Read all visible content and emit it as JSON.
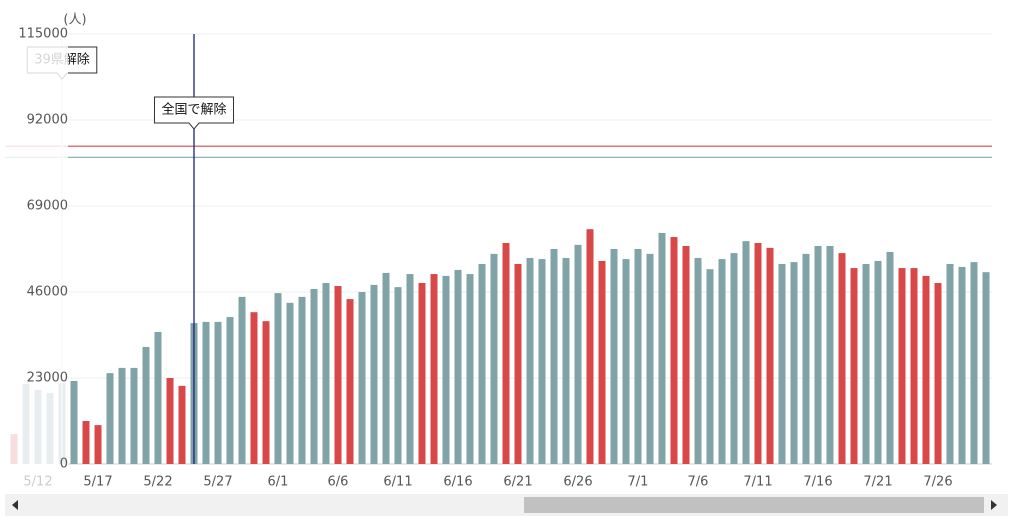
{
  "chart_data": {
    "type": "bar",
    "y_unit": "(人)",
    "categories": [
      null,
      null,
      "5/12",
      null,
      null,
      null,
      null,
      "5/17",
      null,
      null,
      null,
      null,
      "5/22",
      null,
      null,
      null,
      null,
      "5/27",
      null,
      null,
      null,
      null,
      "6/1",
      null,
      null,
      null,
      null,
      "6/6",
      null,
      null,
      null,
      null,
      "6/11",
      null,
      null,
      null,
      null,
      "6/16",
      null,
      null,
      null,
      null,
      "6/21",
      null,
      null,
      null,
      null,
      "6/26",
      null,
      null,
      null,
      null,
      "7/1",
      null,
      null,
      null,
      null,
      "7/6",
      null,
      null,
      null,
      null,
      "7/11",
      null,
      null,
      null,
      null,
      "7/16",
      null,
      null,
      null,
      null,
      "7/21",
      null,
      null,
      null,
      null,
      "7/26",
      null,
      null,
      null,
      null
    ],
    "values": [
      8000,
      21400,
      19800,
      19000,
      21700,
      22200,
      11500,
      10400,
      24300,
      25700,
      25700,
      31300,
      35300,
      23000,
      20900,
      37700,
      38000,
      38000,
      39300,
      44700,
      40600,
      38200,
      45700,
      43100,
      44700,
      46800,
      48400,
      47600,
      44100,
      46000,
      47900,
      51100,
      47300,
      50800,
      48400,
      50800,
      50300,
      51900,
      50800,
      53500,
      56200,
      59100,
      53500,
      55100,
      54800,
      57500,
      55100,
      58600,
      62800,
      54300,
      57500,
      54800,
      57500,
      56200,
      61800,
      60700,
      58300,
      55100,
      52100,
      54800,
      56400,
      59600,
      59100,
      57800,
      53500,
      54000,
      56200,
      58300,
      58300,
      56400,
      52400,
      53500,
      54300,
      56700,
      52400,
      52400,
      50300,
      48400,
      53500,
      52700,
      54000,
      51300
    ],
    "colors": [
      "#d94848",
      "#7fa3a6",
      "#7fa3a6",
      "#7fa3a6",
      "#7fa3a6",
      "#7fa3a6",
      "#d94848",
      "#d94848",
      "#7fa3a6",
      "#7fa3a6",
      "#7fa3a6",
      "#7fa3a6",
      "#7fa3a6",
      "#d94848",
      "#d94848",
      "#7fa3a6",
      "#7fa3a6",
      "#7fa3a6",
      "#7fa3a6",
      "#7fa3a6",
      "#d94848",
      "#d94848",
      "#7fa3a6",
      "#7fa3a6",
      "#7fa3a6",
      "#7fa3a6",
      "#7fa3a6",
      "#d94848",
      "#d94848",
      "#7fa3a6",
      "#7fa3a6",
      "#7fa3a6",
      "#7fa3a6",
      "#7fa3a6",
      "#d94848",
      "#d94848",
      "#7fa3a6",
      "#7fa3a6",
      "#7fa3a6",
      "#7fa3a6",
      "#7fa3a6",
      "#d94848",
      "#d94848",
      "#7fa3a6",
      "#7fa3a6",
      "#7fa3a6",
      "#7fa3a6",
      "#7fa3a6",
      "#d94848",
      "#d94848",
      "#7fa3a6",
      "#7fa3a6",
      "#7fa3a6",
      "#7fa3a6",
      "#7fa3a6",
      "#d94848",
      "#d94848",
      "#7fa3a6",
      "#7fa3a6",
      "#7fa3a6",
      "#7fa3a6",
      "#7fa3a6",
      "#d94848",
      "#d94848",
      "#7fa3a6",
      "#7fa3a6",
      "#7fa3a6",
      "#7fa3a6",
      "#7fa3a6",
      "#d94848",
      "#d94848",
      "#7fa3a6",
      "#7fa3a6",
      "#7fa3a6",
      "#d94848",
      "#d94848",
      "#d94848",
      "#d94848",
      "#7fa3a6",
      "#7fa3a6",
      "#7fa3a6",
      "#7fa3a6"
    ],
    "ylim": [
      0,
      115000
    ],
    "yticks": [
      0,
      23000,
      46000,
      69000,
      92000,
      115000
    ],
    "grid": true,
    "reference_lines": [
      {
        "value": 85000,
        "color": "#d94848"
      },
      {
        "value": 82000,
        "color": "#8fb0b3"
      }
    ],
    "annotations": [
      {
        "text": "39県解除",
        "index": 4,
        "line": "#d8dfe0"
      },
      {
        "text": "全国で解除",
        "index": 15,
        "line": "#1a237e"
      }
    ]
  }
}
